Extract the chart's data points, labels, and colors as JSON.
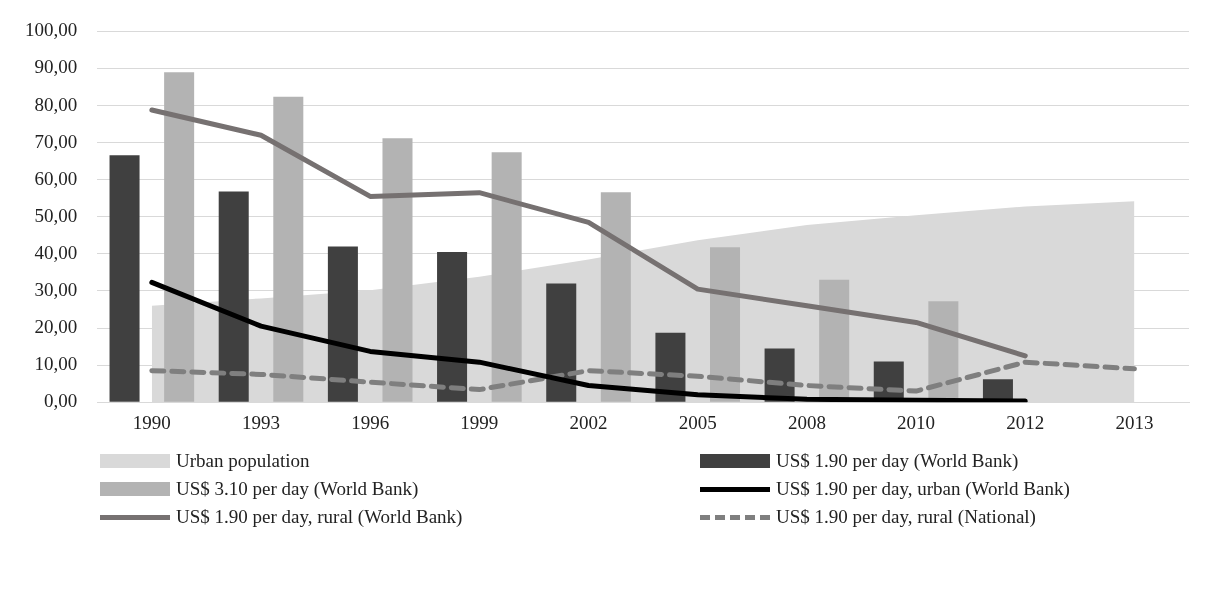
{
  "chart_data": {
    "type": "bar",
    "categories": [
      "1990",
      "1993",
      "1996",
      "1999",
      "2002",
      "2005",
      "2008",
      "2010",
      "2012",
      "2013"
    ],
    "series": [
      {
        "name": "Urban population",
        "type": "area",
        "color": "#d9d9d9",
        "values": [
          26,
          28,
          30.2,
          33.8,
          38.5,
          43.7,
          47.8,
          50.4,
          52.8,
          54.2
        ]
      },
      {
        "name": "US$ 1.90 per day (World Bank)",
        "color": "#404040",
        "values": [
          66.6,
          56.8,
          42,
          40.5,
          32,
          18.7,
          14.5,
          11,
          6.2,
          null
        ]
      },
      {
        "name": "US$ 3.10 per day (World Bank)",
        "color": "#b3b3b3",
        "values": [
          89,
          82.4,
          71.2,
          67.4,
          56.6,
          41.8,
          33,
          27.2,
          null,
          null
        ]
      },
      {
        "name": "US$ 1.90 per day, urban (World Bank)",
        "type": "line",
        "color": "#000000",
        "values": [
          32.3,
          20.5,
          13.7,
          10.8,
          4.5,
          2,
          0.8,
          0.5,
          0.3,
          null
        ]
      },
      {
        "name": "US$ 1.90 per day, rural (World Bank)",
        "type": "line",
        "color": "#767171",
        "values": [
          78.8,
          72,
          55.5,
          56.5,
          48.5,
          30.5,
          26,
          21.5,
          12.5,
          null
        ]
      },
      {
        "name": "US$ 1.90 per day, rural (National)",
        "type": "line",
        "line_style": "dashed",
        "color": "#7f7f7f",
        "values": [
          8.5,
          7.5,
          5.4,
          3.4,
          8.5,
          7,
          4.5,
          3,
          10.8,
          9
        ]
      }
    ],
    "ylim": [
      0,
      100
    ],
    "yticks": [
      {
        "value": 0,
        "label": "0,00"
      },
      {
        "value": 10,
        "label": "10,00"
      },
      {
        "value": 20,
        "label": "20,00"
      },
      {
        "value": 30,
        "label": "30,00"
      },
      {
        "value": 40,
        "label": "40,00"
      },
      {
        "value": 50,
        "label": "50,00"
      },
      {
        "value": 60,
        "label": "60,00"
      },
      {
        "value": 70,
        "label": "70,00"
      },
      {
        "value": 80,
        "label": "80,00"
      },
      {
        "value": 90,
        "label": "90,00"
      },
      {
        "value": 100,
        "label": "100,00"
      }
    ],
    "grid": "y",
    "legend": "bottom",
    "marker": "none",
    "line_style": "solid"
  }
}
